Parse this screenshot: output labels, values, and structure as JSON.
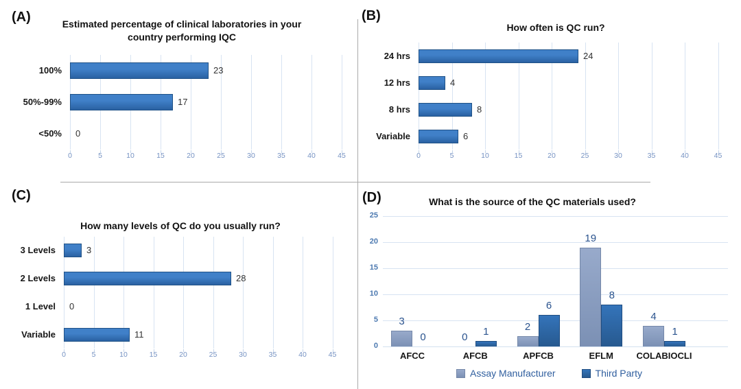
{
  "colors": {
    "bar_blue_top": "#4080C8",
    "bar_blue_bottom": "#2A61A2",
    "bar_blue_border": "#1F5186",
    "assay_top": "#98AACB",
    "assay_bottom": "#7B90B4",
    "assay_border": "#7487A8",
    "third_top": "#3474BA",
    "third_bottom": "#27598F",
    "third_border": "#1F4C80",
    "grid": "#D7E3F2",
    "grid_baseline": "#D3E0EF",
    "tickmark": "#C3D4E9",
    "tick_label": "#7491C2",
    "d_tick_label": "#4C79B0",
    "value_label": "#323232",
    "d_value_label": "#2A538E",
    "legend_text": "#2F5E9E",
    "divider": "#A9A9A9"
  },
  "chart_data": [
    {
      "type": "bar",
      "orientation": "horizontal",
      "panel": "A",
      "panel_label": "(A)",
      "title": "Estimated percentage of clinical laboratories in your country performing IQC",
      "categories": [
        "100%",
        "50%-99%",
        "<50%"
      ],
      "values": [
        23,
        17,
        0
      ],
      "xlim": [
        0,
        45
      ],
      "xticks": [
        0,
        5,
        10,
        15,
        20,
        25,
        30,
        35,
        40,
        45
      ],
      "grid": true,
      "legend_position": "none"
    },
    {
      "type": "bar",
      "orientation": "horizontal",
      "panel": "B",
      "panel_label": "(B)",
      "title": "How often is QC run?",
      "categories": [
        "24 hrs",
        "12 hrs",
        "8 hrs",
        "Variable"
      ],
      "values": [
        24,
        4,
        8,
        6
      ],
      "xlim": [
        0,
        45
      ],
      "xticks": [
        0,
        5,
        10,
        15,
        20,
        25,
        30,
        35,
        40,
        45
      ],
      "grid": true,
      "legend_position": "none"
    },
    {
      "type": "bar",
      "orientation": "horizontal",
      "panel": "C",
      "panel_label": "(C)",
      "title": "How many levels of QC do you usually run?",
      "categories": [
        "3 Levels",
        "2 Levels",
        "1 Level",
        "Variable"
      ],
      "values": [
        3,
        28,
        0,
        11
      ],
      "xlim": [
        0,
        45
      ],
      "xticks": [
        0,
        5,
        10,
        15,
        20,
        25,
        30,
        35,
        40,
        45
      ],
      "grid": true,
      "legend_position": "none"
    },
    {
      "type": "bar",
      "orientation": "vertical",
      "panel": "D",
      "panel_label": "(D)",
      "title": "What is the source of the QC materials used?",
      "categories": [
        "AFCC",
        "AFCB",
        "APFCB",
        "EFLM",
        "COLABIOCLI"
      ],
      "series": [
        {
          "name": "Assay Manufacturer",
          "values": [
            3,
            0,
            2,
            19,
            4
          ]
        },
        {
          "name": "Third Party",
          "values": [
            0,
            1,
            6,
            8,
            1
          ]
        }
      ],
      "ylim": [
        0,
        25
      ],
      "yticks": [
        0,
        5,
        10,
        15,
        20,
        25
      ],
      "grid": true,
      "legend_position": "bottom"
    }
  ]
}
